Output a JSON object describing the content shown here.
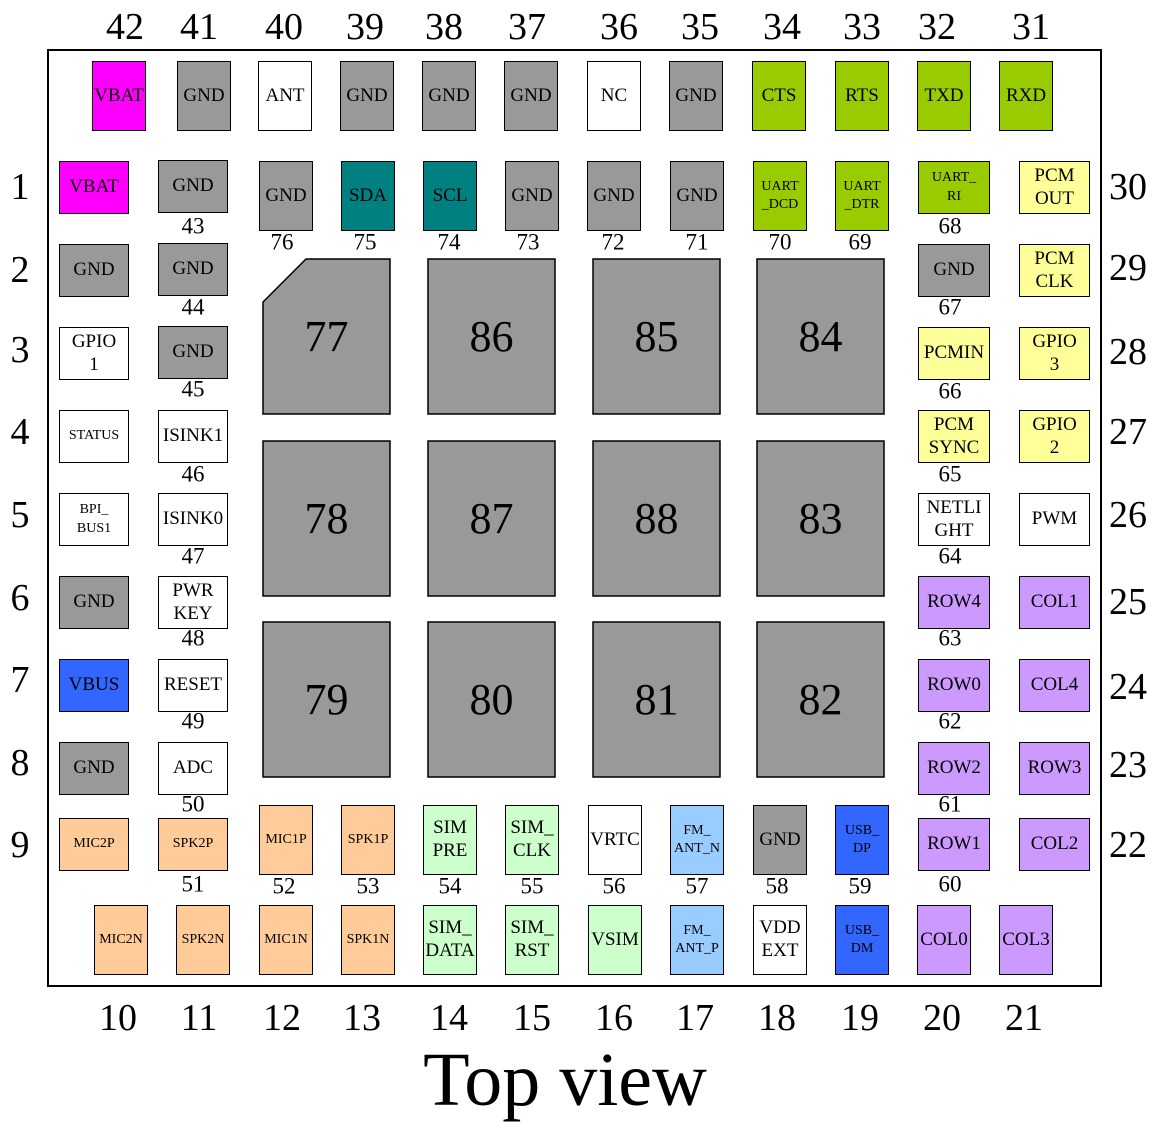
{
  "title": "Top view",
  "top_row": [
    {
      "pin": "42",
      "label": "VBAT",
      "fill": "#FF00FF"
    },
    {
      "pin": "41",
      "label": "GND",
      "fill": "#999999"
    },
    {
      "pin": "40",
      "label": "ANT",
      "fill": "#FFFFFF"
    },
    {
      "pin": "39",
      "label": "GND",
      "fill": "#999999"
    },
    {
      "pin": "38",
      "label": "GND",
      "fill": "#999999"
    },
    {
      "pin": "37",
      "label": "GND",
      "fill": "#999999"
    },
    {
      "pin": "36",
      "label": "NC",
      "fill": "#FFFFFF"
    },
    {
      "pin": "35",
      "label": "GND",
      "fill": "#999999"
    },
    {
      "pin": "34",
      "label": "CTS",
      "fill": "#99CC00"
    },
    {
      "pin": "33",
      "label": "RTS",
      "fill": "#99CC00"
    },
    {
      "pin": "32",
      "label": "TXD",
      "fill": "#99CC00"
    },
    {
      "pin": "31",
      "label": "RXD",
      "fill": "#99CC00"
    }
  ],
  "upper_inner_row": [
    {
      "pin": "76",
      "label": "GND",
      "fill": "#999999"
    },
    {
      "pin": "75",
      "label": "SDA",
      "fill": "#008080"
    },
    {
      "pin": "74",
      "label": "SCL",
      "fill": "#008080"
    },
    {
      "pin": "73",
      "label": "GND",
      "fill": "#999999"
    },
    {
      "pin": "72",
      "label": "GND",
      "fill": "#999999"
    },
    {
      "pin": "71",
      "label": "GND",
      "fill": "#999999"
    },
    {
      "pin": "70",
      "label": "UART\n_DCD",
      "fill": "#99CC00"
    },
    {
      "pin": "69",
      "label": "UART\n_DTR",
      "fill": "#99CC00"
    }
  ],
  "left_outer_column": [
    {
      "pin": "1",
      "label": "VBAT",
      "fill": "#FF00FF"
    },
    {
      "pin": "2",
      "label": "GND",
      "fill": "#999999"
    },
    {
      "pin": "3",
      "label": "GPIO\n1",
      "fill": "#FFFFFF"
    },
    {
      "pin": "4",
      "label": "STATUS",
      "fill": "#FFFFFF"
    },
    {
      "pin": "5",
      "label": "BPI_\nBUS1",
      "fill": "#FFFFFF"
    },
    {
      "pin": "6",
      "label": "GND",
      "fill": "#999999"
    },
    {
      "pin": "7",
      "label": "VBUS",
      "fill": "#3366FF"
    },
    {
      "pin": "8",
      "label": "GND",
      "fill": "#999999"
    },
    {
      "pin": "9",
      "label": "MIC2P",
      "fill": "#FFCC99"
    }
  ],
  "left_inner_column": [
    {
      "pin": "43",
      "label": "GND",
      "fill": "#999999"
    },
    {
      "pin": "44",
      "label": "GND",
      "fill": "#999999"
    },
    {
      "pin": "45",
      "label": "GND",
      "fill": "#999999"
    },
    {
      "pin": "46",
      "label": "ISINK1",
      "fill": "#FFFFFF"
    },
    {
      "pin": "47",
      "label": "ISINK0",
      "fill": "#FFFFFF"
    },
    {
      "pin": "48",
      "label": "PWR\nKEY",
      "fill": "#FFFFFF"
    },
    {
      "pin": "49",
      "label": "RESET",
      "fill": "#FFFFFF"
    },
    {
      "pin": "50",
      "label": "ADC",
      "fill": "#FFFFFF"
    },
    {
      "pin": "51",
      "label": "SPK2P",
      "fill": "#FFCC99"
    }
  ],
  "right_inner_column": [
    {
      "pin": "68",
      "label": "UART_\nRI",
      "fill": "#99CC00"
    },
    {
      "pin": "67",
      "label": "GND",
      "fill": "#999999"
    },
    {
      "pin": "66",
      "label": "PCMIN",
      "fill": "#FFFF99"
    },
    {
      "pin": "65",
      "label": "PCM\nSYNC",
      "fill": "#FFFF99"
    },
    {
      "pin": "64",
      "label": "NETLI\nGHT",
      "fill": "#FFFFFF"
    },
    {
      "pin": "63",
      "label": "ROW4",
      "fill": "#CC99FF"
    },
    {
      "pin": "62",
      "label": "ROW0",
      "fill": "#CC99FF"
    },
    {
      "pin": "61",
      "label": "ROW2",
      "fill": "#CC99FF"
    },
    {
      "pin": "60",
      "label": "ROW1",
      "fill": "#CC99FF"
    }
  ],
  "right_outer_column": [
    {
      "pin": "30",
      "label": "PCM\nOUT",
      "fill": "#FFFF99"
    },
    {
      "pin": "29",
      "label": "PCM\nCLK",
      "fill": "#FFFF99"
    },
    {
      "pin": "28",
      "label": "GPIO\n3",
      "fill": "#FFFF99"
    },
    {
      "pin": "27",
      "label": "GPIO\n2",
      "fill": "#FFFF99"
    },
    {
      "pin": "26",
      "label": "PWM",
      "fill": "#FFFFFF"
    },
    {
      "pin": "25",
      "label": "COL1",
      "fill": "#CC99FF"
    },
    {
      "pin": "24",
      "label": "COL4",
      "fill": "#CC99FF"
    },
    {
      "pin": "23",
      "label": "ROW3",
      "fill": "#CC99FF"
    },
    {
      "pin": "22",
      "label": "COL2",
      "fill": "#CC99FF"
    }
  ],
  "lower_inner_row": [
    {
      "pin": "52",
      "label": "MIC1P",
      "fill": "#FFCC99"
    },
    {
      "pin": "53",
      "label": "SPK1P",
      "fill": "#FFCC99"
    },
    {
      "pin": "54",
      "label": "SIM\nPRE",
      "fill": "#CCFFCC"
    },
    {
      "pin": "55",
      "label": "SIM_\nCLK",
      "fill": "#CCFFCC"
    },
    {
      "pin": "56",
      "label": "VRTC",
      "fill": "#FFFFFF"
    },
    {
      "pin": "57",
      "label": "FM_\nANT_N",
      "fill": "#99CCFF"
    },
    {
      "pin": "58",
      "label": "GND",
      "fill": "#999999"
    },
    {
      "pin": "59",
      "label": "USB_\nDP",
      "fill": "#3366FF"
    }
  ],
  "bottom_row": [
    {
      "pin": "10",
      "label": "MIC2N",
      "fill": "#FFCC99"
    },
    {
      "pin": "11",
      "label": "SPK2N",
      "fill": "#FFCC99"
    },
    {
      "pin": "12",
      "label": "MIC1N",
      "fill": "#FFCC99"
    },
    {
      "pin": "13",
      "label": "SPK1N",
      "fill": "#FFCC99"
    },
    {
      "pin": "14",
      "label": "SIM_\nDATA",
      "fill": "#CCFFCC"
    },
    {
      "pin": "15",
      "label": "SIM_\nRST",
      "fill": "#CCFFCC"
    },
    {
      "pin": "16",
      "label": "VSIM",
      "fill": "#CCFFCC"
    },
    {
      "pin": "17",
      "label": "FM_\nANT_P",
      "fill": "#99CCFF"
    },
    {
      "pin": "18",
      "label": "VDD\nEXT",
      "fill": "#FFFFFF"
    },
    {
      "pin": "19",
      "label": "USB_\nDM",
      "fill": "#3366FF"
    },
    {
      "pin": "20",
      "label": "COL0",
      "fill": "#CC99FF"
    },
    {
      "pin": "21",
      "label": "COL3",
      "fill": "#CC99FF"
    }
  ],
  "center_pads": [
    {
      "pin": "77",
      "fill": "#999999"
    },
    {
      "pin": "86",
      "fill": "#999999"
    },
    {
      "pin": "85",
      "fill": "#999999"
    },
    {
      "pin": "84",
      "fill": "#999999"
    },
    {
      "pin": "78",
      "fill": "#999999"
    },
    {
      "pin": "87",
      "fill": "#999999"
    },
    {
      "pin": "88",
      "fill": "#999999"
    },
    {
      "pin": "83",
      "fill": "#999999"
    },
    {
      "pin": "79",
      "fill": "#999999"
    },
    {
      "pin": "80",
      "fill": "#999999"
    },
    {
      "pin": "81",
      "fill": "#999999"
    },
    {
      "pin": "82",
      "fill": "#999999"
    }
  ]
}
